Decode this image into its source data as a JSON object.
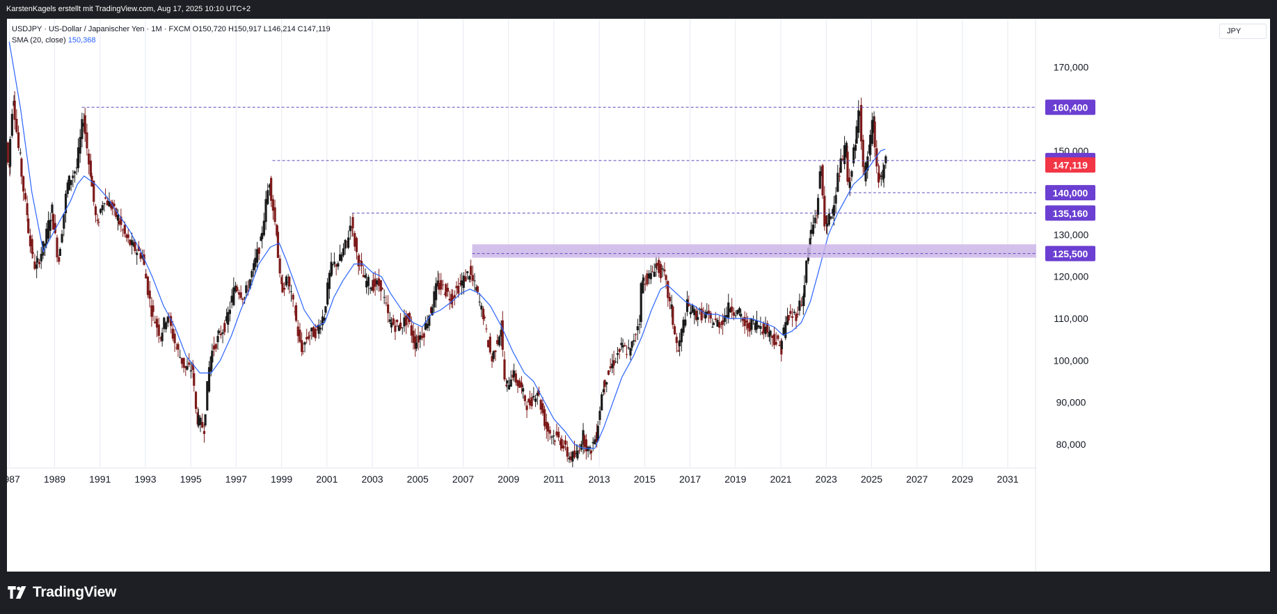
{
  "header": {
    "attribution": "KarstenKagels erstellt mit TradingView.com, Aug 17, 2025 10:10 UTC+2"
  },
  "legend": {
    "symbol_line": "USDJPY · US-Dollar / Japanischer Yen · 1M · FXCM",
    "ohlc": "O150,720  H150,917  L146,214  C147,119",
    "sma_label": "SMA (20, close)",
    "sma_value": "150,368"
  },
  "currency": "JPY",
  "footer": {
    "brand": "TradingView"
  },
  "colors": {
    "up": "#1b1b1b",
    "down": "#7d1a1a",
    "sma": "#2962ff",
    "level_line": "#5b4bbf",
    "level_label_bg": "#6b3fd1",
    "last_price_bg": "#f23645",
    "zone": "#cdb6e8",
    "grid": "#e6e9f0"
  },
  "chart_data": {
    "type": "candlestick",
    "symbol": "USDJPY",
    "interval": "1M",
    "x_ticks": [
      "1987",
      "1989",
      "1991",
      "1993",
      "1995",
      "1997",
      "1999",
      "2001",
      "2003",
      "2005",
      "2007",
      "2009",
      "2011",
      "2013",
      "2015",
      "2017",
      "2019",
      "2021",
      "2023",
      "2025",
      "2027",
      "2029",
      "2031"
    ],
    "y_ticks": [
      "80,000",
      "90,000",
      "100,000",
      "110,000",
      "120,000",
      "130,000",
      "140,000",
      "150,000",
      "160,000",
      "170,000"
    ],
    "y_tick_values": [
      80,
      90,
      100,
      110,
      120,
      130,
      140,
      150,
      160,
      170
    ],
    "ylim": [
      74.5,
      181.5
    ],
    "xlim": [
      1986.9,
      2032.1
    ],
    "path": [
      [
        1986.9,
        152
      ],
      [
        1987.0,
        146
      ],
      [
        1987.2,
        163
      ],
      [
        1987.5,
        148
      ],
      [
        1987.8,
        135
      ],
      [
        1988.0,
        126
      ],
      [
        1988.2,
        122
      ],
      [
        1988.6,
        128
      ],
      [
        1988.9,
        136
      ],
      [
        1989.2,
        124
      ],
      [
        1989.6,
        142
      ],
      [
        1990.0,
        146
      ],
      [
        1990.3,
        158
      ],
      [
        1990.6,
        145
      ],
      [
        1990.9,
        132
      ],
      [
        1991.2,
        139
      ],
      [
        1991.5,
        137
      ],
      [
        1991.8,
        134
      ],
      [
        1992.2,
        129
      ],
      [
        1992.5,
        127
      ],
      [
        1992.9,
        125
      ],
      [
        1993.3,
        112
      ],
      [
        1993.7,
        106
      ],
      [
        1994.0,
        111
      ],
      [
        1994.4,
        103
      ],
      [
        1994.8,
        98
      ],
      [
        1995.1,
        98
      ],
      [
        1995.3,
        86
      ],
      [
        1995.6,
        84
      ],
      [
        1995.9,
        101
      ],
      [
        1996.2,
        105
      ],
      [
        1996.6,
        109
      ],
      [
        1997.0,
        118
      ],
      [
        1997.4,
        115
      ],
      [
        1997.8,
        122
      ],
      [
        1998.1,
        128
      ],
      [
        1998.5,
        143
      ],
      [
        1998.8,
        131
      ],
      [
        1999.0,
        117
      ],
      [
        1999.3,
        119
      ],
      [
        1999.6,
        112
      ],
      [
        1999.9,
        102
      ],
      [
        2000.2,
        106
      ],
      [
        2000.6,
        107
      ],
      [
        2000.9,
        111
      ],
      [
        2001.2,
        122
      ],
      [
        2001.6,
        124
      ],
      [
        2001.9,
        128
      ],
      [
        2002.1,
        133
      ],
      [
        2002.4,
        124
      ],
      [
        2002.7,
        119
      ],
      [
        2003.0,
        118
      ],
      [
        2003.4,
        118
      ],
      [
        2003.8,
        109
      ],
      [
        2004.2,
        108
      ],
      [
        2004.6,
        110
      ],
      [
        2004.9,
        104
      ],
      [
        2005.3,
        107
      ],
      [
        2005.6,
        112
      ],
      [
        2005.9,
        118
      ],
      [
        2006.2,
        117
      ],
      [
        2006.5,
        115
      ],
      [
        2006.9,
        118
      ],
      [
        2007.3,
        121
      ],
      [
        2007.6,
        117
      ],
      [
        2007.9,
        111
      ],
      [
        2008.3,
        100
      ],
      [
        2008.7,
        108
      ],
      [
        2008.9,
        93
      ],
      [
        2009.2,
        97
      ],
      [
        2009.6,
        93
      ],
      [
        2009.9,
        89
      ],
      [
        2010.3,
        93
      ],
      [
        2010.7,
        84
      ],
      [
        2011.0,
        82
      ],
      [
        2011.3,
        81
      ],
      [
        2011.7,
        77
      ],
      [
        2012.0,
        77
      ],
      [
        2012.3,
        82
      ],
      [
        2012.6,
        78
      ],
      [
        2012.9,
        82
      ],
      [
        2013.2,
        94
      ],
      [
        2013.6,
        99
      ],
      [
        2014.0,
        103
      ],
      [
        2014.4,
        102
      ],
      [
        2014.8,
        110
      ],
      [
        2014.9,
        119
      ],
      [
        2015.3,
        120
      ],
      [
        2015.5,
        123
      ],
      [
        2015.9,
        120
      ],
      [
        2016.2,
        112
      ],
      [
        2016.5,
        102
      ],
      [
        2016.9,
        113
      ],
      [
        2017.3,
        111
      ],
      [
        2017.7,
        111
      ],
      [
        2018.0,
        109
      ],
      [
        2018.4,
        109
      ],
      [
        2018.8,
        113
      ],
      [
        2019.2,
        111
      ],
      [
        2019.5,
        108
      ],
      [
        2019.9,
        109
      ],
      [
        2020.2,
        108
      ],
      [
        2020.5,
        107
      ],
      [
        2020.9,
        104
      ],
      [
        2021.0,
        103
      ],
      [
        2021.3,
        110
      ],
      [
        2021.7,
        111
      ],
      [
        2022.0,
        115
      ],
      [
        2022.3,
        129
      ],
      [
        2022.6,
        135
      ],
      [
        2022.8,
        146
      ],
      [
        2023.0,
        131
      ],
      [
        2023.3,
        136
      ],
      [
        2023.6,
        145
      ],
      [
        2023.9,
        151
      ],
      [
        2024.0,
        141
      ],
      [
        2024.3,
        151
      ],
      [
        2024.5,
        161
      ],
      [
        2024.7,
        143
      ],
      [
        2024.9,
        150
      ],
      [
        2025.1,
        157
      ],
      [
        2025.3,
        143
      ],
      [
        2025.5,
        144
      ],
      [
        2025.6,
        147.1
      ]
    ],
    "sma": [
      [
        1987.0,
        176
      ],
      [
        1987.5,
        160
      ],
      [
        1988.0,
        140
      ],
      [
        1988.5,
        126
      ],
      [
        1988.9,
        130
      ],
      [
        1989.3,
        134
      ],
      [
        1989.7,
        138
      ],
      [
        1990.0,
        142
      ],
      [
        1990.3,
        144
      ],
      [
        1990.8,
        142
      ],
      [
        1991.3,
        139
      ],
      [
        1991.8,
        135
      ],
      [
        1992.3,
        131
      ],
      [
        1992.8,
        126
      ],
      [
        1993.3,
        120
      ],
      [
        1993.8,
        113
      ],
      [
        1994.3,
        108
      ],
      [
        1994.8,
        101
      ],
      [
        1995.1,
        99
      ],
      [
        1995.4,
        97
      ],
      [
        1995.9,
        97
      ],
      [
        1996.3,
        100
      ],
      [
        1996.8,
        106
      ],
      [
        1997.2,
        112
      ],
      [
        1997.6,
        117
      ],
      [
        1998.0,
        123
      ],
      [
        1998.5,
        127
      ],
      [
        1998.9,
        128
      ],
      [
        1999.2,
        124
      ],
      [
        1999.6,
        118
      ],
      [
        2000.0,
        112
      ],
      [
        2000.5,
        108
      ],
      [
        2000.9,
        109
      ],
      [
        2001.3,
        115
      ],
      [
        2001.7,
        119
      ],
      [
        2002.2,
        123
      ],
      [
        2002.6,
        123
      ],
      [
        2003.0,
        121
      ],
      [
        2003.4,
        120
      ],
      [
        2003.8,
        116
      ],
      [
        2004.3,
        112
      ],
      [
        2004.8,
        109
      ],
      [
        2005.2,
        108
      ],
      [
        2005.6,
        111
      ],
      [
        2006.0,
        112
      ],
      [
        2006.5,
        114
      ],
      [
        2006.9,
        116
      ],
      [
        2007.3,
        117
      ],
      [
        2007.7,
        116
      ],
      [
        2008.2,
        113
      ],
      [
        2008.7,
        108
      ],
      [
        2009.2,
        102
      ],
      [
        2009.7,
        97
      ],
      [
        2010.1,
        95
      ],
      [
        2010.6,
        90
      ],
      [
        2011.0,
        86
      ],
      [
        2011.5,
        83
      ],
      [
        2011.9,
        80
      ],
      [
        2012.3,
        79
      ],
      [
        2012.8,
        79
      ],
      [
        2013.2,
        84
      ],
      [
        2013.6,
        90
      ],
      [
        2014.0,
        96
      ],
      [
        2014.5,
        101
      ],
      [
        2014.9,
        106
      ],
      [
        2015.3,
        112
      ],
      [
        2015.7,
        117
      ],
      [
        2016.0,
        118
      ],
      [
        2016.4,
        116
      ],
      [
        2016.8,
        114
      ],
      [
        2017.2,
        113
      ],
      [
        2017.7,
        111
      ],
      [
        2018.2,
        111
      ],
      [
        2018.7,
        110
      ],
      [
        2019.2,
        110
      ],
      [
        2019.7,
        110
      ],
      [
        2020.2,
        109
      ],
      [
        2020.7,
        108
      ],
      [
        2021.1,
        106
      ],
      [
        2021.5,
        107
      ],
      [
        2021.9,
        109
      ],
      [
        2022.3,
        114
      ],
      [
        2022.7,
        122
      ],
      [
        2023.1,
        130
      ],
      [
        2023.5,
        135
      ],
      [
        2023.9,
        139
      ],
      [
        2024.2,
        142
      ],
      [
        2024.6,
        144
      ],
      [
        2025.0,
        147
      ],
      [
        2025.4,
        150
      ],
      [
        2025.6,
        150.4
      ]
    ],
    "levels": [
      {
        "label": "160,400",
        "value": 160.4,
        "from": 1990.2
      },
      {
        "label": "147,670",
        "value": 147.67,
        "from": 1998.6
      },
      {
        "label": "140,000",
        "value": 140.0,
        "from": 2024.0
      },
      {
        "label": "135,160",
        "value": 135.16,
        "from": 2002.1
      },
      {
        "label": "125,500",
        "value": 125.5,
        "from": 2007.4
      }
    ],
    "zone": {
      "from": 2007.4,
      "low": 124.5,
      "high": 127.7
    },
    "last_price": {
      "label": "147,119",
      "value": 147.119
    }
  }
}
